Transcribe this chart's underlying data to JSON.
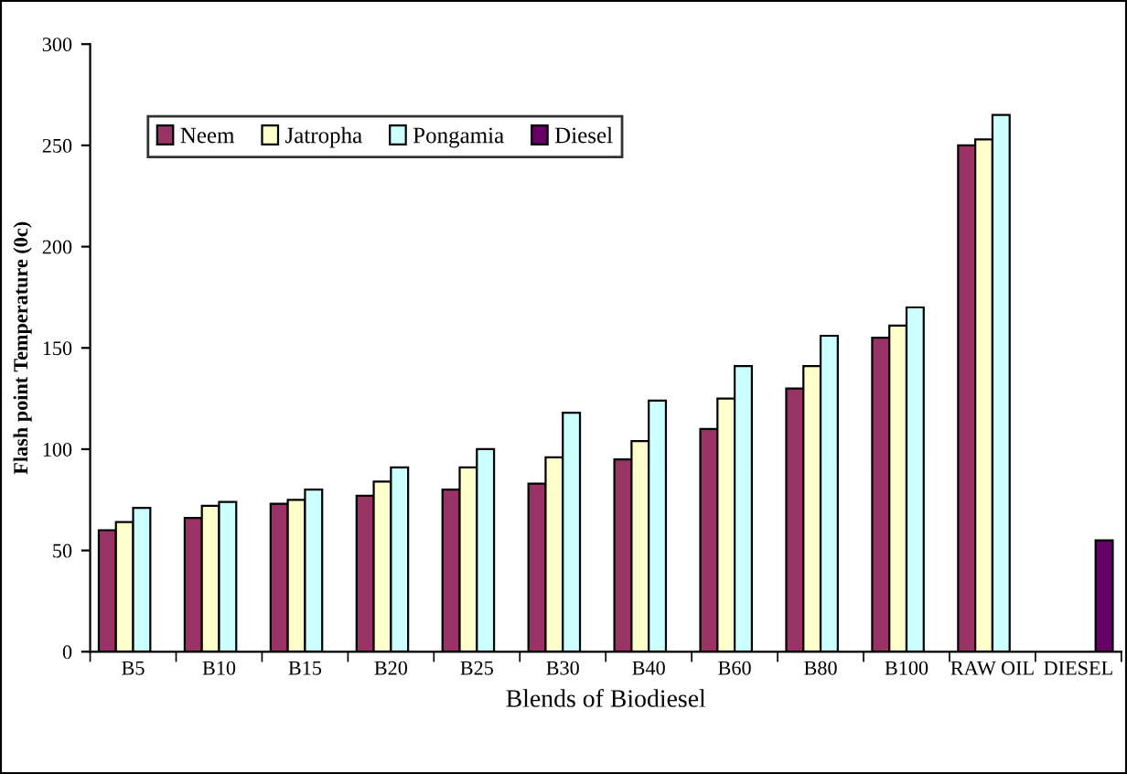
{
  "chart_data": {
    "type": "bar",
    "xlabel": "Blends of Biodiesel",
    "ylabel": "Flash point Temperature (0c)",
    "categories": [
      "B5",
      "B10",
      "B15",
      "B20",
      "B25",
      "B30",
      "B40",
      "B60",
      "B80",
      "B100",
      "RAW OIL",
      "DIESEL"
    ],
    "series": [
      {
        "name": "Neem",
        "color": "#993366",
        "values": [
          60,
          66,
          73,
          77,
          80,
          83,
          95,
          110,
          130,
          155,
          250,
          null
        ]
      },
      {
        "name": "Jatropha",
        "color": "#ffffcc",
        "values": [
          64,
          72,
          75,
          84,
          91,
          96,
          104,
          125,
          141,
          161,
          253,
          null
        ]
      },
      {
        "name": "Pongamia",
        "color": "#ccffff",
        "values": [
          71,
          74,
          80,
          91,
          100,
          118,
          124,
          141,
          156,
          170,
          265,
          null
        ]
      },
      {
        "name": "Diesel",
        "color": "#660066",
        "values": [
          null,
          null,
          null,
          null,
          null,
          null,
          null,
          null,
          null,
          null,
          null,
          55
        ]
      }
    ],
    "ylim": [
      0,
      300
    ],
    "yticks": [
      0,
      50,
      100,
      150,
      200,
      250,
      300
    ],
    "grid": false,
    "legend": "top left"
  }
}
